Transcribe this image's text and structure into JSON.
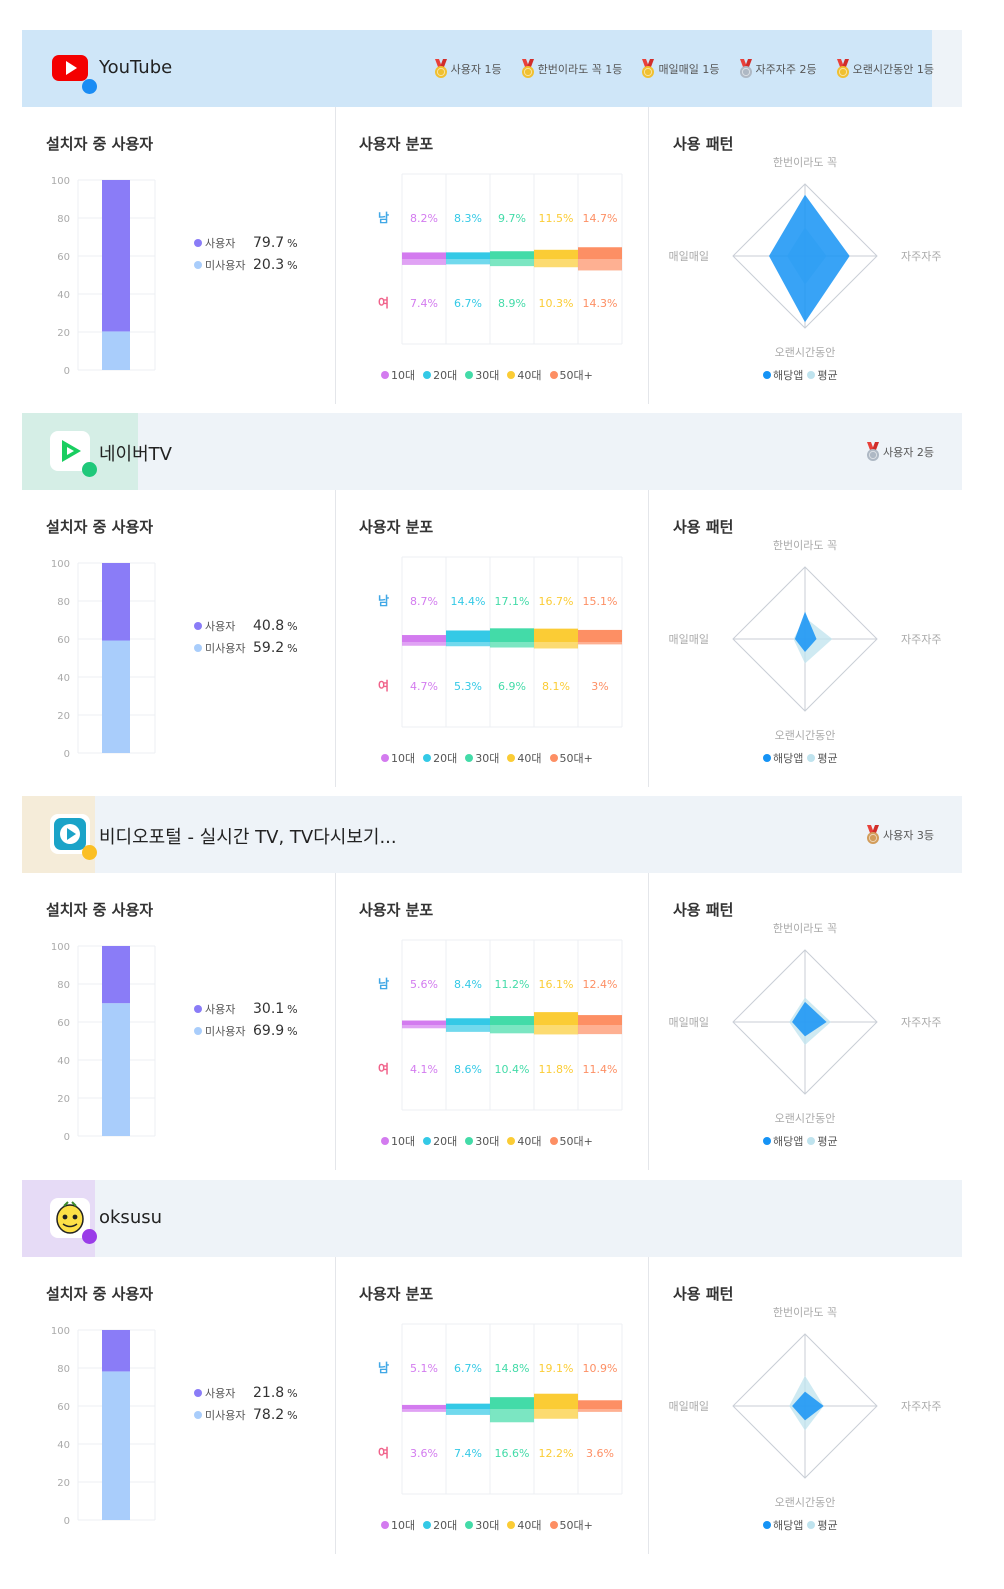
{
  "colors": {
    "user": "#8a7cf7",
    "nonuser": "#a9cdfb",
    "male": "#41a8e6",
    "female": "#f0628a",
    "target_app": "#1593f5",
    "average": "#bfe3ee",
    "ages": [
      "#d37bef",
      "#34c9e6",
      "#43dba8",
      "#fbcc35",
      "#fd8f64"
    ],
    "gold": "#f0c030",
    "silver": "#aeb8c4",
    "bronze": "#d29c5a"
  },
  "panel_titles": {
    "installed": "설치자 중 사용자",
    "distribution": "사용자 분포",
    "pattern": "사용 패턴"
  },
  "legend": {
    "user": "사용자",
    "nonuser": "미사용자",
    "percent_sign": "%",
    "male": "남",
    "female": "여",
    "ages": [
      "10대",
      "20대",
      "30대",
      "40대",
      "50대+"
    ],
    "target_app": "해당앱",
    "average": "평균"
  },
  "radar_axes": {
    "top": "한번이라도 꼭",
    "right": "자주자주",
    "bottom": "오랜시간동안",
    "left": "매일매일"
  },
  "y_ticks": [
    "100",
    "80",
    "60",
    "40",
    "20",
    "0"
  ],
  "apps": [
    {
      "name": "YouTube",
      "icon": "youtube-icon",
      "accent": "#cfe6f8",
      "accent_width_frac": 0.968,
      "dot_color": "#1a8cf4",
      "awards": [
        {
          "label": "사용자 1등",
          "medal": "gold"
        },
        {
          "label": "한번이라도 꼭 1등",
          "medal": "gold"
        },
        {
          "label": "매일매일 1등",
          "medal": "gold"
        },
        {
          "label": "자주자주 2등",
          "medal": "silver"
        },
        {
          "label": "오랜시간동안 1등",
          "medal": "gold"
        }
      ],
      "user_pct": "79.7",
      "nonuser_pct": "20.3",
      "male_labels": [
        "8.2%",
        "8.3%",
        "9.7%",
        "11.5%",
        "14.7%"
      ],
      "female_labels": [
        "7.4%",
        "6.7%",
        "8.9%",
        "10.3%",
        "14.3%"
      ],
      "male": [
        8.2,
        8.3,
        9.7,
        11.5,
        14.7
      ],
      "female": [
        7.4,
        6.7,
        8.9,
        10.3,
        14.3
      ],
      "radar_app": [
        0.85,
        0.62,
        0.92,
        0.5
      ],
      "radar_avg": [
        0.4,
        0.3,
        0.4,
        0.25
      ]
    },
    {
      "name": "네이버TV",
      "icon": "naver-tv-icon",
      "accent": "#d5eee6",
      "accent_width_frac": 0.123,
      "dot_color": "#1fc87a",
      "awards": [
        {
          "label": "사용자 2등",
          "medal": "silver"
        }
      ],
      "user_pct": "40.8",
      "nonuser_pct": "59.2",
      "male_labels": [
        "8.7%",
        "14.4%",
        "17.1%",
        "16.7%",
        "15.1%"
      ],
      "female_labels": [
        "4.7%",
        "5.3%",
        "6.9%",
        "8.1%",
        "3%"
      ],
      "male": [
        8.7,
        14.4,
        17.1,
        16.7,
        15.1
      ],
      "female": [
        4.7,
        5.3,
        6.9,
        8.1,
        3.0
      ],
      "radar_app": [
        0.38,
        0.16,
        0.18,
        0.14
      ],
      "radar_avg": [
        0.3,
        0.38,
        0.34,
        0.16
      ]
    },
    {
      "name": "비디오포털 - 실시간 TV, TV다시보기...",
      "icon": "video-portal-icon",
      "accent": "#f5ecd9",
      "accent_width_frac": 0.078,
      "dot_color": "#fbbf24",
      "awards": [
        {
          "label": "사용자 3등",
          "medal": "bronze"
        }
      ],
      "user_pct": "30.1",
      "nonuser_pct": "69.9",
      "male_labels": [
        "5.6%",
        "8.4%",
        "11.2%",
        "16.1%",
        "12.4%"
      ],
      "female_labels": [
        "4.1%",
        "8.6%",
        "10.4%",
        "11.8%",
        "11.4%"
      ],
      "male": [
        5.6,
        8.4,
        11.2,
        16.1,
        12.4
      ],
      "female": [
        4.1,
        8.6,
        10.4,
        11.8,
        11.4
      ],
      "radar_app": [
        0.28,
        0.3,
        0.2,
        0.18
      ],
      "radar_avg": [
        0.34,
        0.36,
        0.32,
        0.22
      ]
    },
    {
      "name": "oksusu",
      "icon": "oksusu-icon",
      "accent": "#e6dbf6",
      "accent_width_frac": 0.078,
      "dot_color": "#9a3ce8",
      "awards": [],
      "user_pct": "21.8",
      "nonuser_pct": "78.2",
      "male_labels": [
        "5.1%",
        "6.7%",
        "14.8%",
        "19.1%",
        "10.9%"
      ],
      "female_labels": [
        "3.6%",
        "7.4%",
        "16.6%",
        "12.2%",
        "3.6%"
      ],
      "male": [
        5.1,
        6.7,
        14.8,
        19.1,
        10.9
      ],
      "female": [
        3.6,
        7.4,
        16.6,
        12.2,
        3.6
      ],
      "radar_app": [
        0.2,
        0.26,
        0.2,
        0.18
      ],
      "radar_avg": [
        0.42,
        0.26,
        0.34,
        0.22
      ]
    }
  ],
  "chart_data": [
    {
      "type": "bar",
      "title": "YouTube - 설치자 중 사용자",
      "categories": [
        "사용자",
        "미사용자"
      ],
      "values": [
        79.7,
        20.3
      ],
      "ylim": [
        0,
        100
      ]
    },
    {
      "type": "bar",
      "title": "YouTube - 사용자 분포",
      "categories": [
        "10대",
        "20대",
        "30대",
        "40대",
        "50대+"
      ],
      "series": [
        {
          "name": "남",
          "values": [
            8.2,
            8.3,
            9.7,
            11.5,
            14.7
          ]
        },
        {
          "name": "여",
          "values": [
            7.4,
            6.7,
            8.9,
            10.3,
            14.3
          ]
        }
      ]
    },
    {
      "type": "bar",
      "title": "네이버TV - 설치자 중 사용자",
      "categories": [
        "사용자",
        "미사용자"
      ],
      "values": [
        40.8,
        59.2
      ],
      "ylim": [
        0,
        100
      ]
    },
    {
      "type": "bar",
      "title": "네이버TV - 사용자 분포",
      "categories": [
        "10대",
        "20대",
        "30대",
        "40대",
        "50대+"
      ],
      "series": [
        {
          "name": "남",
          "values": [
            8.7,
            14.4,
            17.1,
            16.7,
            15.1
          ]
        },
        {
          "name": "여",
          "values": [
            4.7,
            5.3,
            6.9,
            8.1,
            3.0
          ]
        }
      ]
    },
    {
      "type": "bar",
      "title": "비디오포털 - 설치자 중 사용자",
      "categories": [
        "사용자",
        "미사용자"
      ],
      "values": [
        30.1,
        69.9
      ],
      "ylim": [
        0,
        100
      ]
    },
    {
      "type": "bar",
      "title": "비디오포털 - 사용자 분포",
      "categories": [
        "10대",
        "20대",
        "30대",
        "40대",
        "50대+"
      ],
      "series": [
        {
          "name": "남",
          "values": [
            5.6,
            8.4,
            11.2,
            16.1,
            12.4
          ]
        },
        {
          "name": "여",
          "values": [
            4.1,
            8.6,
            10.4,
            11.8,
            11.4
          ]
        }
      ]
    },
    {
      "type": "bar",
      "title": "oksusu - 설치자 중 사용자",
      "categories": [
        "사용자",
        "미사용자"
      ],
      "values": [
        21.8,
        78.2
      ],
      "ylim": [
        0,
        100
      ]
    },
    {
      "type": "bar",
      "title": "oksusu - 사용자 분포",
      "categories": [
        "10대",
        "20대",
        "30대",
        "40대",
        "50대+"
      ],
      "series": [
        {
          "name": "남",
          "values": [
            5.1,
            6.7,
            14.8,
            19.1,
            10.9
          ]
        },
        {
          "name": "여",
          "values": [
            3.6,
            7.4,
            16.6,
            12.2,
            3.6
          ]
        }
      ]
    }
  ]
}
